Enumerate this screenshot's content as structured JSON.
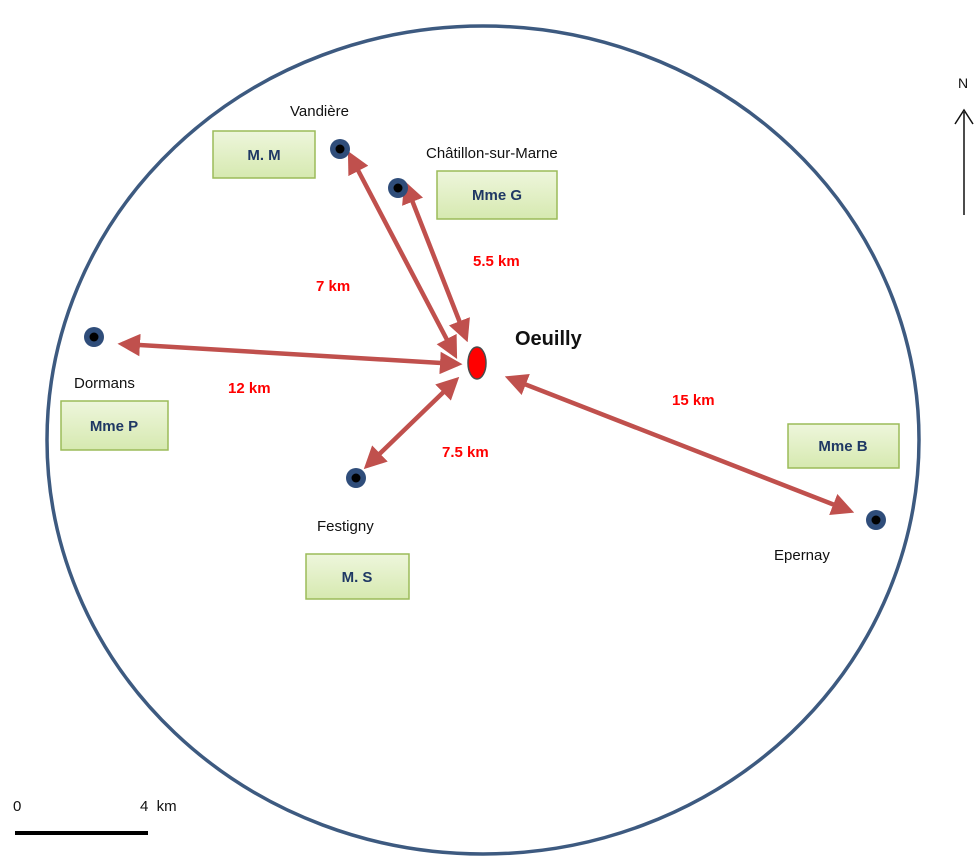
{
  "center": {
    "name": "Oeuilly"
  },
  "towns": {
    "vandiere": {
      "name": "Vandière",
      "person": "M. M",
      "distance": "7 km"
    },
    "chatillon": {
      "name": "Châtillon-sur-Marne",
      "person": "Mme G",
      "distance": "5.5 km"
    },
    "dormans": {
      "name": "Dormans",
      "person": "Mme P",
      "distance": "12 km"
    },
    "festigny": {
      "name": "Festigny",
      "person": "M. S",
      "distance": "7.5 km"
    },
    "epernay": {
      "name": "Epernay",
      "person": "Mme B",
      "distance": "15 km"
    }
  },
  "scale": {
    "start": "0",
    "end": "4  km"
  },
  "north": {
    "label": "N"
  },
  "colors": {
    "boundary": "#3d5a80",
    "arrow": "#c0504d",
    "town_dot": "#2f4d7a",
    "center_marker": "#ff0000",
    "label_box_fill": "#e2f0c4",
    "label_box_border": "#9bbb59",
    "distance_text": "#ff0000"
  }
}
